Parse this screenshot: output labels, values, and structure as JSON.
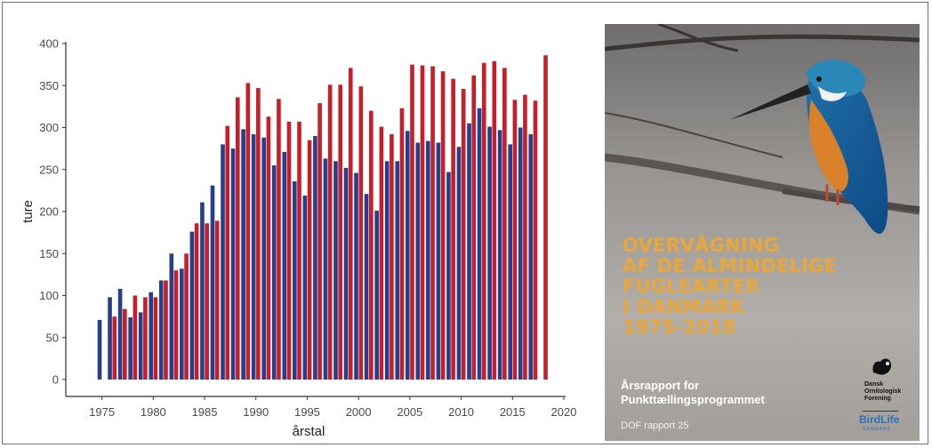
{
  "chart_data": {
    "type": "bar",
    "title": "",
    "xlabel": "årstal",
    "ylabel": "ture",
    "xlim": [
      1972,
      2020
    ],
    "ylim": [
      0,
      400
    ],
    "xticks": [
      1975,
      1980,
      1985,
      1990,
      1995,
      2000,
      2005,
      2010,
      2015,
      2020
    ],
    "yticks": [
      0,
      50,
      100,
      150,
      200,
      250,
      300,
      350,
      400
    ],
    "grid": false,
    "legend": "none",
    "series": [
      {
        "color": "#253f8b",
        "x": [
          1975,
          1976,
          1977,
          1978,
          1979,
          1980,
          1981,
          1982,
          1983,
          1984,
          1985,
          1986,
          1987,
          1988,
          1989,
          1990,
          1991,
          1992,
          1993,
          1994,
          1995,
          1996,
          1997,
          1998,
          1999,
          2000,
          2001,
          2002,
          2003,
          2004,
          2005,
          2006,
          2007,
          2008,
          2009,
          2010,
          2011,
          2012,
          2013,
          2014,
          2015,
          2016,
          2017
        ],
        "values": [
          71,
          98,
          108,
          74,
          80,
          104,
          118,
          150,
          132,
          176,
          211,
          231,
          280,
          275,
          298,
          292,
          288,
          255,
          271,
          236,
          219,
          290,
          263,
          260,
          252,
          246,
          221,
          201,
          260,
          260,
          296,
          282,
          284,
          282,
          247,
          277,
          305,
          323,
          301,
          297,
          280,
          300,
          292
        ]
      },
      {
        "color": "#c81e2a",
        "x": [
          1976,
          1977,
          1978,
          1979,
          1980,
          1981,
          1982,
          1983,
          1984,
          1985,
          1986,
          1987,
          1988,
          1989,
          1990,
          1991,
          1992,
          1993,
          1994,
          1995,
          1996,
          1997,
          1998,
          1999,
          2000,
          2001,
          2002,
          2003,
          2004,
          2005,
          2006,
          2007,
          2008,
          2009,
          2010,
          2011,
          2012,
          2013,
          2014,
          2015,
          2016,
          2017,
          2018
        ],
        "values": [
          75,
          84,
          100,
          98,
          98,
          118,
          130,
          150,
          186,
          186,
          189,
          302,
          336,
          353,
          347,
          313,
          334,
          307,
          307,
          285,
          329,
          351,
          351,
          371,
          349,
          320,
          301,
          292,
          323,
          375,
          374,
          373,
          367,
          358,
          346,
          362,
          377,
          379,
          371,
          333,
          339,
          332,
          386
        ]
      }
    ]
  },
  "cover": {
    "title_lines": [
      "OVERVÅGNING",
      "AF DE ALMINDELIGE",
      "FUGLEARTER",
      "I DANMARK",
      "1975-2018"
    ],
    "subtitle_lines": [
      "Årsrapport for",
      "Punkttællingsprogrammet"
    ],
    "report_number": "DOF rapport 25",
    "logo_lines": [
      "Dansk",
      "Ornitologisk",
      "Forening"
    ],
    "birdlife": "BirdLife",
    "birdlife_sub": "DANMARK"
  }
}
